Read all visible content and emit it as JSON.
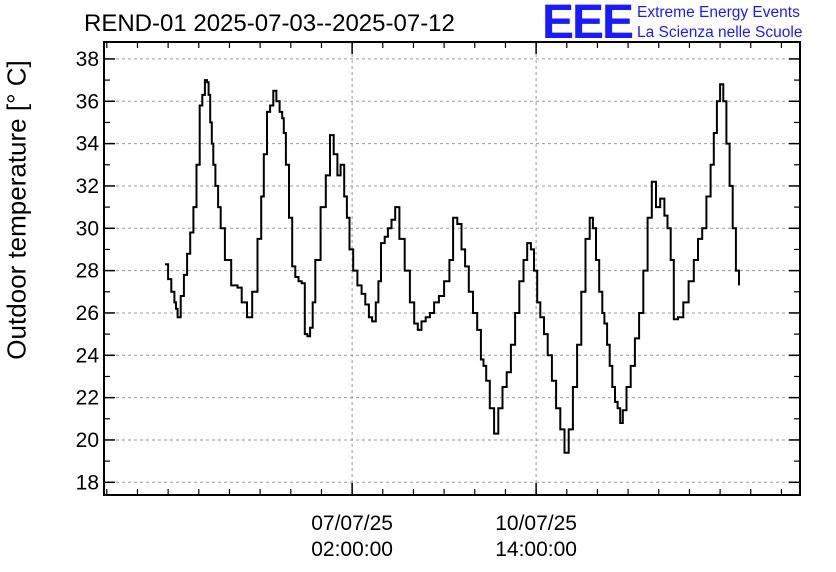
{
  "header": {
    "title": "REND-01 2025-07-03--2025-07-12",
    "logo_text": "EEE",
    "logo_line1": "Extreme Energy Events",
    "logo_line2": "La Scienza nelle Scuole",
    "logo_color": "#1a1aff"
  },
  "chart_data": {
    "type": "line",
    "title": "REND-01 2025-07-03--2025-07-12",
    "ylabel": "Outdoor temperature [° C]",
    "xlabel": "",
    "ylim": [
      17.4,
      38.8
    ],
    "xlim": [
      -4.72,
      8.52
    ],
    "y_ticks": [
      18,
      20,
      22,
      24,
      26,
      28,
      30,
      32,
      34,
      36,
      38
    ],
    "x_ticks": [
      {
        "value": 0,
        "line1": "07/07/25",
        "line2": "02:00:00"
      },
      {
        "value": 3.5,
        "line1": "10/07/25",
        "line2": "14:00:00"
      }
    ],
    "x_unit": "days since 07/07/25 02:00:00",
    "grid": true,
    "series": [
      {
        "name": "",
        "color": "#000000",
        "x": [
          -3.56,
          -3.5,
          -3.44,
          -3.38,
          -3.35,
          -3.32,
          -3.26,
          -3.2,
          -3.14,
          -3.08,
          -3.02,
          -2.96,
          -2.9,
          -2.85,
          -2.8,
          -2.76,
          -2.73,
          -2.7,
          -2.67,
          -2.64,
          -2.6,
          -2.55,
          -2.5,
          -2.42,
          -2.3,
          -2.18,
          -2.1,
          -2.0,
          -1.9,
          -1.8,
          -1.73,
          -1.68,
          -1.62,
          -1.56,
          -1.5,
          -1.44,
          -1.38,
          -1.33,
          -1.3,
          -1.26,
          -1.2,
          -1.14,
          -1.08,
          -1.02,
          -0.96,
          -0.9,
          -0.85,
          -0.8,
          -0.75,
          -0.7,
          -0.6,
          -0.5,
          -0.42,
          -0.35,
          -0.28,
          -0.22,
          -0.15,
          -0.1,
          -0.05,
          0.02,
          0.1,
          0.18,
          0.25,
          0.32,
          0.38,
          0.45,
          0.5,
          0.55,
          0.62,
          0.68,
          0.75,
          0.82,
          0.9,
          1.0,
          1.1,
          1.18,
          1.25,
          1.32,
          1.4,
          1.48,
          1.56,
          1.65,
          1.75,
          1.85,
          1.92,
          2.0,
          2.08,
          2.15,
          2.22,
          2.3,
          2.38,
          2.45,
          2.5,
          2.55,
          2.62,
          2.7,
          2.78,
          2.86,
          2.94,
          3.02,
          3.1,
          3.18,
          3.26,
          3.33,
          3.4,
          3.46,
          3.52,
          3.58,
          3.65,
          3.72,
          3.8,
          3.88,
          3.96,
          4.04,
          4.12,
          4.2,
          4.28,
          4.36,
          4.44,
          4.52,
          4.58,
          4.64,
          4.7,
          4.76,
          4.8,
          4.85,
          4.9,
          4.95,
          5.0,
          5.05,
          5.1,
          5.15,
          5.22,
          5.3,
          5.38,
          5.46,
          5.54,
          5.62,
          5.7,
          5.78,
          5.86,
          5.94,
          6.0,
          6.06,
          6.12,
          6.2,
          6.3,
          6.4,
          6.5,
          6.58,
          6.66,
          6.74,
          6.82,
          6.88,
          6.94,
          7.0,
          7.06,
          7.12,
          7.18,
          7.24,
          7.3,
          7.36
        ],
        "y": [
          28.3,
          27.6,
          27.0,
          26.5,
          26.2,
          25.8,
          26.8,
          27.8,
          28.8,
          29.8,
          31.0,
          33.0,
          35.8,
          36.3,
          37.0,
          36.9,
          36.3,
          35.0,
          34.0,
          33.0,
          32.0,
          31.0,
          30.0,
          28.5,
          27.3,
          27.2,
          26.5,
          25.8,
          27.0,
          29.5,
          31.5,
          33.5,
          35.5,
          35.8,
          36.5,
          36.0,
          35.5,
          35.2,
          34.5,
          33.0,
          30.5,
          28.2,
          27.7,
          27.5,
          27.4,
          25.0,
          24.9,
          25.3,
          26.5,
          28.5,
          31.0,
          32.5,
          34.4,
          33.5,
          32.5,
          33.0,
          31.5,
          30.5,
          29.0,
          28.0,
          27.3,
          26.9,
          26.4,
          25.8,
          25.6,
          26.5,
          27.5,
          29.3,
          29.6,
          30.0,
          30.4,
          31.0,
          29.5,
          28.0,
          26.5,
          25.5,
          25.2,
          25.6,
          25.8,
          26.0,
          26.5,
          26.8,
          27.5,
          28.5,
          30.5,
          30.2,
          29.0,
          28.2,
          27.0,
          26.0,
          25.2,
          23.8,
          23.5,
          22.8,
          21.5,
          20.3,
          21.5,
          22.5,
          23.2,
          24.5,
          26.0,
          27.5,
          28.5,
          29.3,
          29.0,
          28.0,
          26.5,
          25.8,
          25.0,
          24.0,
          22.8,
          21.5,
          20.5,
          19.4,
          20.5,
          22.5,
          24.5,
          27.0,
          29.5,
          30.5,
          30.0,
          28.5,
          27.0,
          26.0,
          25.5,
          24.5,
          23.5,
          22.5,
          21.8,
          21.5,
          20.8,
          21.4,
          22.5,
          23.5,
          24.8,
          26.0,
          28.0,
          30.5,
          32.2,
          31.0,
          31.4,
          30.6,
          30.0,
          28.5,
          25.7,
          25.8,
          26.5,
          27.5,
          28.5,
          29.5,
          30.0,
          31.5,
          33.0,
          34.5,
          36.0,
          36.8,
          36.0,
          34.0,
          32.0,
          30.0,
          28.0,
          27.3
        ]
      }
    ]
  }
}
